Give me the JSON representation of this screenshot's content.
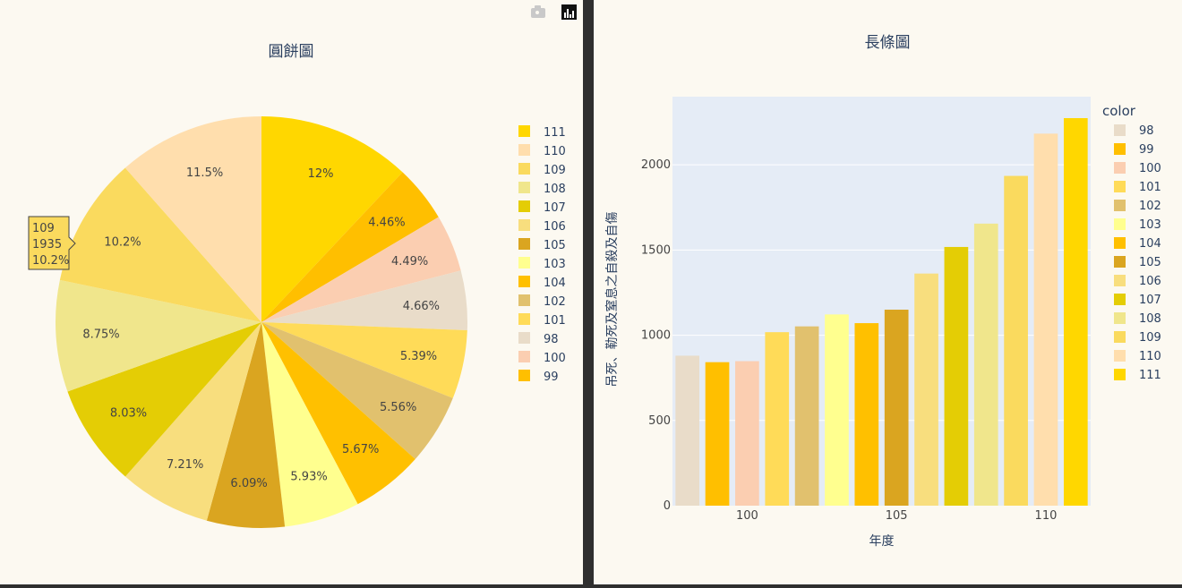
{
  "toolbar": {
    "camera_icon": "camera-icon",
    "logo_icon": "plotly-logo-icon"
  },
  "chart_data": [
    {
      "type": "pie",
      "title": "圓餅圖",
      "direction": "clockwise",
      "slices": [
        {
          "label": "111",
          "percent": 12.0,
          "text": "12%",
          "color": "#FFD700"
        },
        {
          "label": "99",
          "percent": 4.46,
          "text": "4.46%",
          "color": "#FFBF00"
        },
        {
          "label": "100",
          "percent": 4.49,
          "text": "4.49%",
          "color": "#FBCEB1"
        },
        {
          "label": "98",
          "percent": 4.66,
          "text": "4.66%",
          "color": "#E9DCC9"
        },
        {
          "label": "101",
          "percent": 5.39,
          "text": "5.39%",
          "color": "#FFDB58"
        },
        {
          "label": "102",
          "percent": 5.56,
          "text": "5.56%",
          "color": "#E1C16E"
        },
        {
          "label": "104",
          "percent": 5.67,
          "text": "5.67%",
          "color": "#FFC000"
        },
        {
          "label": "103",
          "percent": 5.93,
          "text": "5.93%",
          "color": "#FFFF8F"
        },
        {
          "label": "105",
          "percent": 6.09,
          "text": "6.09%",
          "color": "#DAA520"
        },
        {
          "label": "106",
          "percent": 7.21,
          "text": "7.21%",
          "color": "#F8DE7E"
        },
        {
          "label": "107",
          "percent": 8.03,
          "text": "8.03%",
          "color": "#E4CD05"
        },
        {
          "label": "108",
          "percent": 8.75,
          "text": "8.75%",
          "color": "#F0E68C"
        },
        {
          "label": "109",
          "percent": 10.2,
          "text": "10.2%",
          "color": "#FADA5E"
        },
        {
          "label": "110",
          "percent": 11.5,
          "text": "11.5%",
          "color": "#FFDEAD"
        }
      ],
      "legend_order": [
        "111",
        "110",
        "109",
        "108",
        "107",
        "106",
        "105",
        "103",
        "104",
        "102",
        "101",
        "98",
        "100",
        "99"
      ],
      "tooltip": {
        "lines": [
          "109",
          "1935",
          "10.2%"
        ],
        "slice": "109"
      }
    },
    {
      "type": "bar",
      "title": "長條圖",
      "xlabel": "年度",
      "ylabel": "吊死、勒死及窒息之自殺及自傷",
      "legend_title": "color",
      "ylim": [
        0,
        2400
      ],
      "yticks": [
        0,
        500,
        1000,
        1500,
        2000
      ],
      "xticks": [
        100,
        105,
        110
      ],
      "xlim": [
        97.5,
        111.5
      ],
      "bars": [
        {
          "x": 98,
          "value": 880,
          "color": "#E9DCC9"
        },
        {
          "x": 99,
          "value": 842,
          "color": "#FFBF00"
        },
        {
          "x": 100,
          "value": 848,
          "color": "#FBCEB1"
        },
        {
          "x": 101,
          "value": 1018,
          "color": "#FFDB58"
        },
        {
          "x": 102,
          "value": 1052,
          "color": "#E1C16E"
        },
        {
          "x": 103,
          "value": 1122,
          "color": "#FFFF8F"
        },
        {
          "x": 104,
          "value": 1071,
          "color": "#FFC000"
        },
        {
          "x": 105,
          "value": 1150,
          "color": "#DAA520"
        },
        {
          "x": 106,
          "value": 1362,
          "color": "#F8DE7E"
        },
        {
          "x": 107,
          "value": 1518,
          "color": "#E4CD05"
        },
        {
          "x": 108,
          "value": 1655,
          "color": "#F0E68C"
        },
        {
          "x": 109,
          "value": 1935,
          "color": "#FADA5E"
        },
        {
          "x": 110,
          "value": 2183,
          "color": "#FFDEAD"
        },
        {
          "x": 111,
          "value": 2274,
          "color": "#FFD700"
        }
      ]
    }
  ]
}
